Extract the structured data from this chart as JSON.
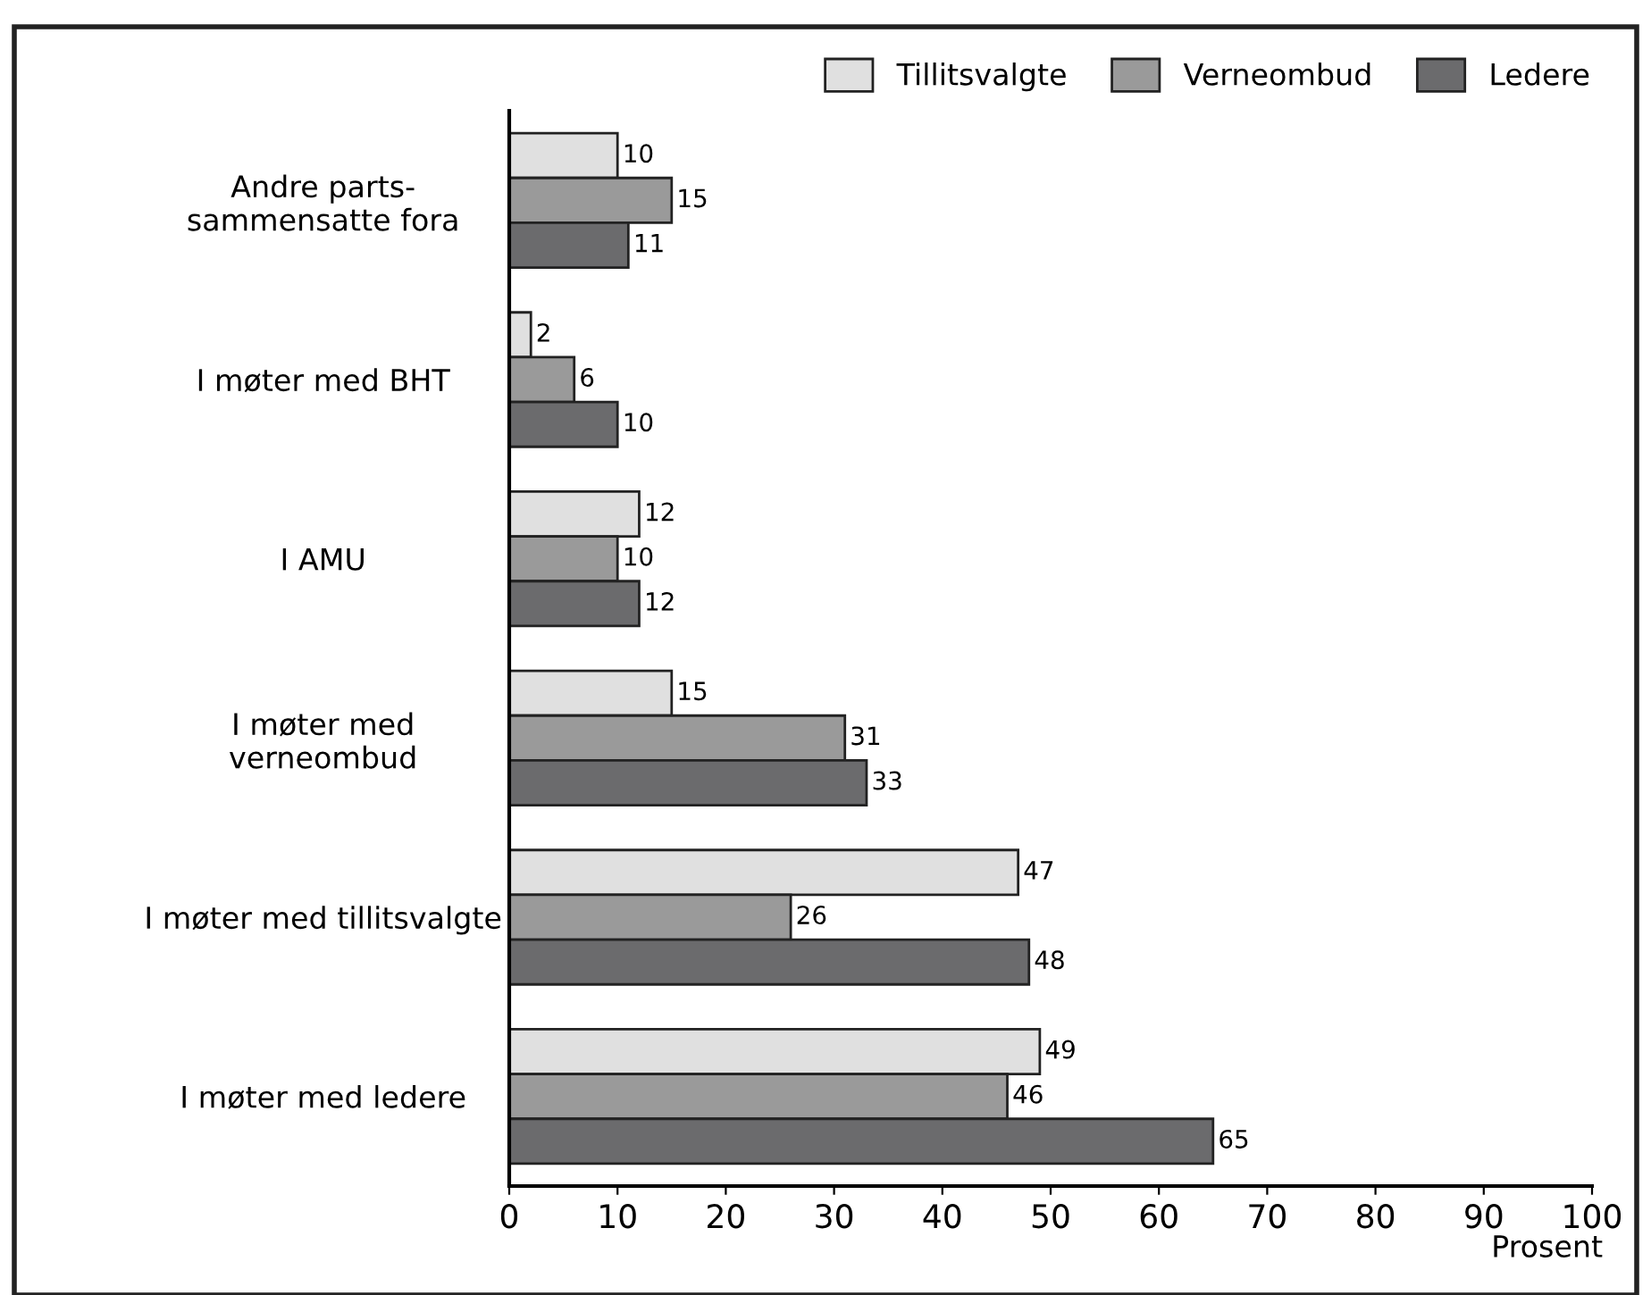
{
  "chart_data": {
    "type": "bar",
    "orientation": "horizontal",
    "categories": [
      "Andre parts-\nsammensatte fora",
      "I møter med BHT",
      "I AMU",
      "I møter med\nverneombud",
      "I møter med tillitsvalgte",
      "I møter med ledere"
    ],
    "series": [
      {
        "name": "Tillitsvalgte",
        "color": "#e0e0e0",
        "values": [
          10,
          2,
          12,
          15,
          47,
          49
        ]
      },
      {
        "name": "Verneombud",
        "color": "#9a9a9a",
        "values": [
          15,
          6,
          10,
          31,
          26,
          46
        ]
      },
      {
        "name": "Ledere",
        "color": "#6b6b6d",
        "values": [
          11,
          10,
          12,
          33,
          48,
          65
        ]
      }
    ],
    "xlabel": "Prosent",
    "xlim": [
      0,
      100
    ],
    "xticks": [
      0,
      10,
      20,
      30,
      40,
      50,
      60,
      70,
      80,
      90,
      100
    ],
    "data_labels": true,
    "legend": "top right",
    "grid": false
  }
}
